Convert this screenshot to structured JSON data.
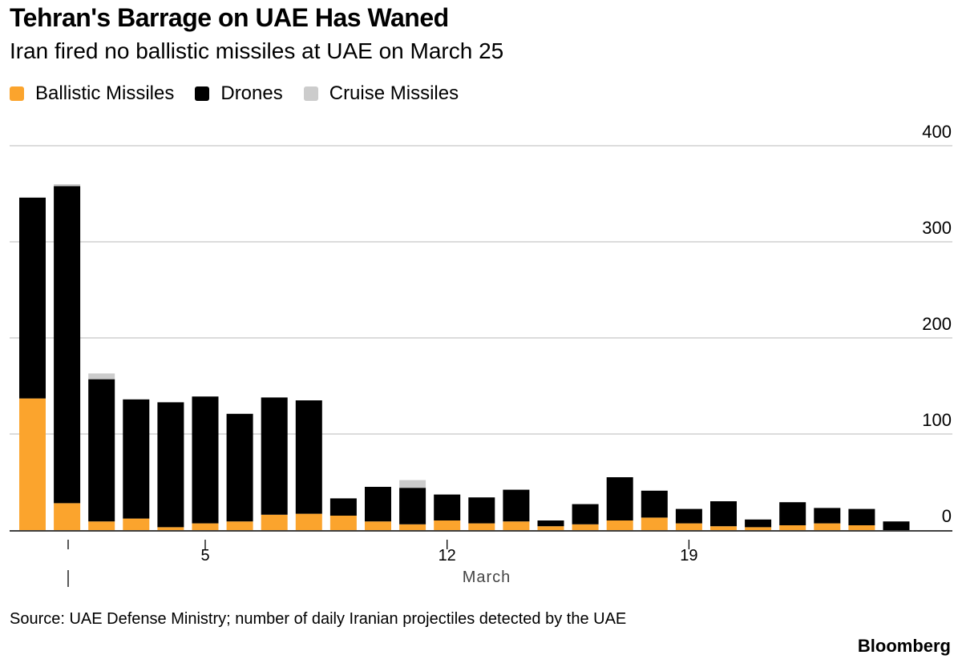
{
  "chart_data": {
    "type": "bar",
    "stacked": true,
    "title": "Tehran's Barrage on UAE Has Waned",
    "subtitle": "Iran fired no ballistic missiles at UAE on March 25",
    "x_label": "March",
    "x_tick_labels": [
      {
        "label": "5",
        "category": "Mar 5"
      },
      {
        "label": "12",
        "category": "Mar 12"
      },
      {
        "label": "19",
        "category": "Mar 19"
      }
    ],
    "y_ticks": [
      0,
      100,
      200,
      300,
      400
    ],
    "ylim": [
      0,
      400
    ],
    "gridlines": true,
    "y_axis_side": "right",
    "categories": [
      "Feb 28",
      "Mar 1",
      "Mar 2",
      "Mar 3",
      "Mar 4",
      "Mar 5",
      "Mar 6",
      "Mar 7",
      "Mar 8",
      "Mar 9",
      "Mar 10",
      "Mar 11",
      "Mar 12",
      "Mar 13",
      "Mar 14",
      "Mar 15",
      "Mar 16",
      "Mar 17",
      "Mar 18",
      "Mar 19",
      "Mar 20",
      "Mar 21",
      "Mar 22",
      "Mar 23",
      "Mar 24",
      "Mar 25"
    ],
    "series": [
      {
        "name": "Ballistic Missiles",
        "color": "#FBA42D",
        "values": [
          137,
          28,
          9,
          12,
          3,
          7,
          9,
          16,
          17,
          15,
          9,
          6,
          10,
          7,
          9,
          4,
          6,
          10,
          13,
          7,
          4,
          3,
          5,
          7,
          5,
          0
        ]
      },
      {
        "name": "Drones",
        "color": "#000000",
        "values": [
          209,
          330,
          148,
          124,
          130,
          132,
          112,
          122,
          118,
          18,
          36,
          38,
          27,
          27,
          33,
          6,
          21,
          45,
          28,
          15,
          26,
          8,
          24,
          16,
          17,
          9
        ]
      },
      {
        "name": "Cruise Missiles",
        "color": "#CCCCCC",
        "values": [
          0,
          2,
          6,
          0,
          0,
          0,
          0,
          0,
          0,
          0,
          0,
          8,
          0,
          0,
          0,
          0,
          0,
          0,
          0,
          0,
          0,
          0,
          0,
          0,
          0,
          0
        ]
      }
    ]
  },
  "source": "Source: UAE Defense Ministry; number of daily Iranian projectiles detected by the UAE",
  "brand": "Bloomberg"
}
